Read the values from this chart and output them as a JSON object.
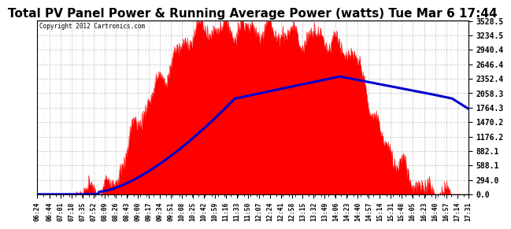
{
  "title": "Total PV Panel Power & Running Average Power (watts) Tue Mar 6 17:44",
  "copyright": "Copyright 2012 Cartronics.com",
  "background_color": "#ffffff",
  "plot_bg_color": "#ffffff",
  "grid_color": "#bbbbbb",
  "y_ticks": [
    0.0,
    294.0,
    588.1,
    882.1,
    1176.2,
    1470.2,
    1764.3,
    2058.3,
    2352.4,
    2646.4,
    2940.4,
    3234.5,
    3528.5
  ],
  "x_labels": [
    "06:24",
    "06:44",
    "07:01",
    "07:18",
    "07:35",
    "07:52",
    "08:09",
    "08:26",
    "08:43",
    "09:00",
    "09:17",
    "09:34",
    "09:51",
    "10:08",
    "10:25",
    "10:42",
    "10:59",
    "11:16",
    "11:33",
    "11:50",
    "12:07",
    "12:24",
    "12:41",
    "12:58",
    "13:15",
    "13:32",
    "13:49",
    "14:06",
    "14:23",
    "14:40",
    "14:57",
    "15:14",
    "15:31",
    "15:48",
    "16:05",
    "16:23",
    "16:40",
    "16:57",
    "17:14",
    "17:31"
  ],
  "fill_color": "#ff0000",
  "line_color": "#0000cc",
  "title_fontsize": 11,
  "y_max": 3528.5,
  "y_min": 0.0
}
